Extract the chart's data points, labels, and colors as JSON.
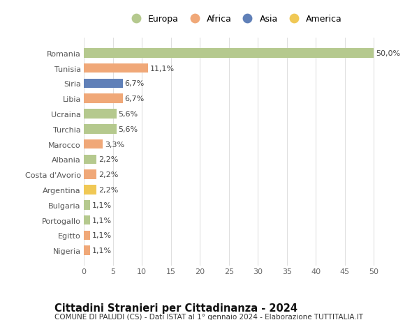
{
  "categories": [
    "Romania",
    "Tunisia",
    "Siria",
    "Libia",
    "Ucraina",
    "Turchia",
    "Marocco",
    "Albania",
    "Costa d'Avorio",
    "Argentina",
    "Bulgaria",
    "Portogallo",
    "Egitto",
    "Nigeria"
  ],
  "values": [
    50.0,
    11.1,
    6.7,
    6.7,
    5.6,
    5.6,
    3.3,
    2.2,
    2.2,
    2.2,
    1.1,
    1.1,
    1.1,
    1.1
  ],
  "labels": [
    "50,0%",
    "11,1%",
    "6,7%",
    "6,7%",
    "5,6%",
    "5,6%",
    "3,3%",
    "2,2%",
    "2,2%",
    "2,2%",
    "1,1%",
    "1,1%",
    "1,1%",
    "1,1%"
  ],
  "colors": [
    "#b5c98e",
    "#f0a878",
    "#6080b8",
    "#f0a878",
    "#b5c98e",
    "#b5c98e",
    "#f0a878",
    "#b5c98e",
    "#f0a878",
    "#f0c855",
    "#b5c98e",
    "#b5c98e",
    "#f0a878",
    "#f0a878"
  ],
  "legend": [
    {
      "label": "Europa",
      "color": "#b5c98e"
    },
    {
      "label": "Africa",
      "color": "#f0a878"
    },
    {
      "label": "Asia",
      "color": "#6080b8"
    },
    {
      "label": "America",
      "color": "#f0c855"
    }
  ],
  "title": "Cittadini Stranieri per Cittadinanza - 2024",
  "subtitle": "COMUNE DI PALUDI (CS) - Dati ISTAT al 1° gennaio 2024 - Elaborazione TUTTITALIA.IT",
  "xlim": [
    0,
    52
  ],
  "xticks": [
    0,
    5,
    10,
    15,
    20,
    25,
    30,
    35,
    40,
    45,
    50
  ],
  "background_color": "#ffffff",
  "grid_color": "#e0e0e0",
  "bar_height": 0.62,
  "label_fontsize": 8,
  "tick_fontsize": 8,
  "ytick_fontsize": 8,
  "title_fontsize": 10.5,
  "subtitle_fontsize": 7.5,
  "legend_fontsize": 9
}
